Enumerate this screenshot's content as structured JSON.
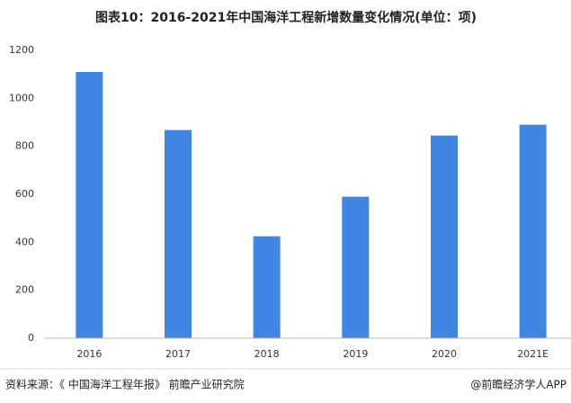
{
  "chart_data": {
    "type": "bar",
    "title": "图表10：2016-2021年中国海洋工程新增数量变化情况(单位：项)",
    "categories": [
      "2016",
      "2017",
      "2018",
      "2019",
      "2020",
      "2021E"
    ],
    "values": [
      1110,
      868,
      425,
      590,
      845,
      890
    ],
    "color": "#3f86e2",
    "ylim": [
      0,
      1200
    ],
    "yticks": [
      0,
      200,
      400,
      600,
      800,
      1000,
      1200
    ],
    "grid": false,
    "source": "资料来源：《 中国海洋工程年报》 前瞻产业研究院",
    "credit": "@前瞻经济学人APP"
  }
}
